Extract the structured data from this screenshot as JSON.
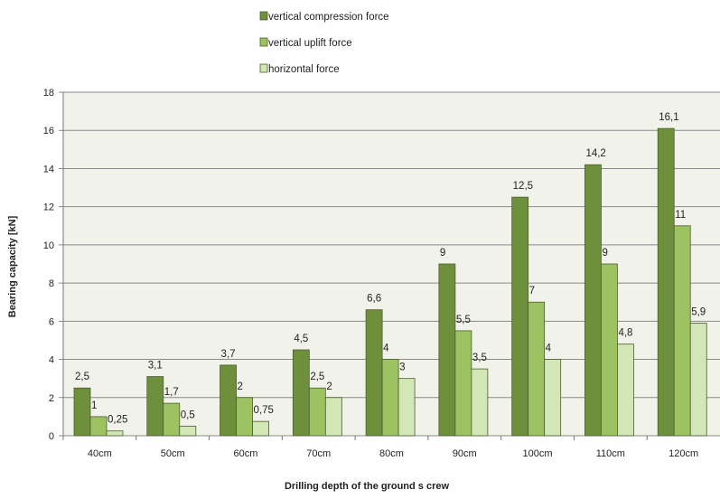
{
  "chart_data": {
    "type": "bar",
    "title": "",
    "xlabel": "Drilling depth of the ground s crew",
    "ylabel": "Bearing capacity [kN]",
    "ylim": [
      0,
      18
    ],
    "yticks": [
      "0",
      "2",
      "4",
      "6",
      "8",
      "10",
      "12",
      "14",
      "16",
      "18"
    ],
    "grid": true,
    "legend_position": "top",
    "categories": [
      "40cm",
      "50cm",
      "60cm",
      "70cm",
      "80cm",
      "90cm",
      "100cm",
      "110cm",
      "120cm"
    ],
    "series": [
      {
        "name": "vertical compression force",
        "color": "#6e8f3c",
        "values": [
          2.5,
          3.1,
          3.7,
          4.5,
          6.6,
          9,
          12.5,
          14.2,
          16.1
        ],
        "labels": [
          "2,5",
          "3,1",
          "3,7",
          "4,5",
          "6,6",
          "9",
          "12,5",
          "14,2",
          "16,1"
        ]
      },
      {
        "name": "vertical uplift force",
        "color": "#9cc262",
        "values": [
          1,
          1.7,
          2,
          2.5,
          4,
          5.5,
          7,
          9,
          11
        ],
        "labels": [
          "1",
          "1,7",
          "2",
          "2,5",
          "4",
          "5,5",
          "7",
          "9",
          "11"
        ]
      },
      {
        "name": "horizontal force",
        "color": "#d3e6b5",
        "values": [
          0.25,
          0.5,
          0.75,
          2,
          3,
          3.5,
          4,
          4.8,
          5.9
        ],
        "labels": [
          "0,25",
          "0,5",
          "0,75",
          "2",
          "3",
          "3,5",
          "4",
          "4,8",
          "5,9"
        ]
      }
    ]
  },
  "colors": {
    "plot_background": "#f1f2ea",
    "gridline": "#8a8a8a",
    "bar_stroke": "#4d5d2f"
  }
}
